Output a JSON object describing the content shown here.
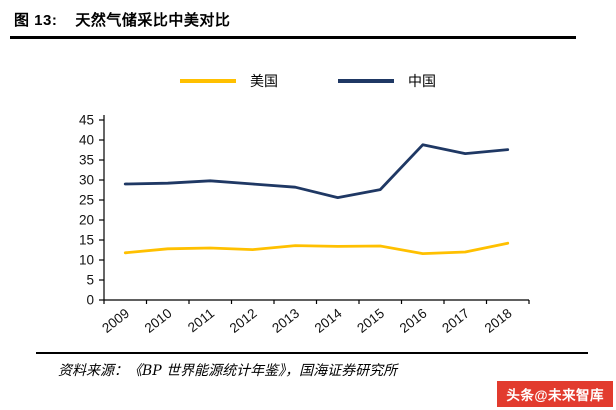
{
  "header": {
    "figure_label": "图 13:",
    "title": "天然气储采比中美对比"
  },
  "chart_data": {
    "type": "line",
    "title": "天然气储采比中美对比",
    "x": [
      "2009",
      "2010",
      "2011",
      "2012",
      "2013",
      "2014",
      "2015",
      "2016",
      "2017",
      "2018"
    ],
    "series": [
      {
        "name": "美国",
        "color": "#FFC000",
        "values": [
          11.8,
          12.8,
          13.0,
          12.6,
          13.6,
          13.4,
          13.5,
          11.6,
          12.0,
          14.2
        ]
      },
      {
        "name": "中国",
        "color": "#1F3864",
        "values": [
          29.0,
          29.2,
          29.8,
          29.0,
          28.2,
          25.6,
          27.6,
          38.8,
          36.6,
          37.6
        ]
      }
    ],
    "ylim": [
      0,
      45
    ],
    "yticks": [
      0,
      5,
      10,
      15,
      20,
      25,
      30,
      35,
      40,
      45
    ],
    "grid": false,
    "legend_position": "top-center",
    "xlabel": "",
    "ylabel": ""
  },
  "footer": {
    "source": "资料来源：《BP 世界能源统计年鉴》，国海证券研究所",
    "watermark": "头条@未来智库",
    "watermark_bg": "#E23B2E"
  }
}
